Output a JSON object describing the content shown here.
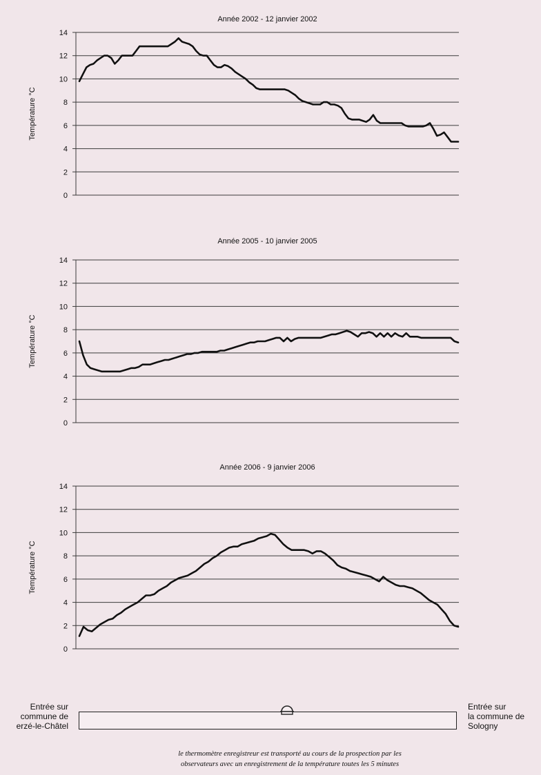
{
  "chart_data": [
    {
      "type": "line",
      "title": "Année 2002 - 12 janvier 2002",
      "ylabel": "Température °C",
      "xlabel": "",
      "ylim": [
        0,
        14
      ],
      "yticks": [
        0,
        2,
        4,
        6,
        8,
        10,
        12,
        14
      ],
      "grid": true,
      "color": "#111111",
      "y": [
        9.8,
        10.4,
        11.0,
        11.2,
        11.3,
        11.6,
        11.8,
        12.0,
        12.0,
        11.8,
        11.3,
        11.6,
        12.0,
        12.0,
        12.0,
        12.0,
        12.4,
        12.8,
        12.8,
        12.8,
        12.8,
        12.8,
        12.8,
        12.8,
        12.8,
        12.8,
        13.0,
        13.2,
        13.5,
        13.2,
        13.1,
        13.0,
        12.8,
        12.4,
        12.1,
        12.0,
        12.0,
        11.6,
        11.2,
        11.0,
        11.0,
        11.2,
        11.1,
        10.9,
        10.6,
        10.4,
        10.2,
        10.0,
        9.7,
        9.5,
        9.2,
        9.1,
        9.1,
        9.1,
        9.1,
        9.1,
        9.1,
        9.1,
        9.1,
        9.0,
        8.8,
        8.6,
        8.3,
        8.1,
        8.0,
        7.9,
        7.8,
        7.8,
        7.8,
        8.0,
        8.0,
        7.8,
        7.8,
        7.7,
        7.5,
        7.0,
        6.6,
        6.5,
        6.5,
        6.5,
        6.4,
        6.3,
        6.5,
        6.9,
        6.4,
        6.2,
        6.2,
        6.2,
        6.2,
        6.2,
        6.2,
        6.2,
        6.0,
        5.9,
        5.9,
        5.9,
        5.9,
        5.9,
        6.0,
        6.2,
        5.7,
        5.1,
        5.2,
        5.4,
        5.0,
        4.6,
        4.6,
        4.6
      ]
    },
    {
      "type": "line",
      "title": "Année 2005 - 10 janvier 2005",
      "ylabel": "Température °C",
      "xlabel": "",
      "ylim": [
        0,
        14
      ],
      "yticks": [
        0,
        2,
        4,
        6,
        8,
        10,
        12,
        14
      ],
      "grid": true,
      "color": "#111111",
      "y": [
        7.0,
        5.8,
        5.0,
        4.7,
        4.6,
        4.5,
        4.4,
        4.4,
        4.4,
        4.4,
        4.4,
        4.4,
        4.5,
        4.6,
        4.7,
        4.7,
        4.8,
        5.0,
        5.0,
        5.0,
        5.1,
        5.2,
        5.3,
        5.4,
        5.4,
        5.5,
        5.6,
        5.7,
        5.8,
        5.9,
        5.9,
        6.0,
        6.0,
        6.1,
        6.1,
        6.1,
        6.1,
        6.1,
        6.2,
        6.2,
        6.3,
        6.4,
        6.5,
        6.6,
        6.7,
        6.8,
        6.9,
        6.9,
        7.0,
        7.0,
        7.0,
        7.1,
        7.2,
        7.3,
        7.3,
        7.0,
        7.3,
        7.0,
        7.2,
        7.3,
        7.3,
        7.3,
        7.3,
        7.3,
        7.3,
        7.3,
        7.4,
        7.5,
        7.6,
        7.6,
        7.7,
        7.8,
        7.9,
        7.8,
        7.6,
        7.4,
        7.7,
        7.7,
        7.8,
        7.7,
        7.4,
        7.7,
        7.4,
        7.7,
        7.4,
        7.7,
        7.5,
        7.4,
        7.7,
        7.4,
        7.4,
        7.4,
        7.3,
        7.3,
        7.3,
        7.3,
        7.3,
        7.3,
        7.3,
        7.3,
        7.3,
        7.0,
        6.9
      ]
    },
    {
      "type": "line",
      "title": "Année 2006 - 9 janvier 2006",
      "ylabel": "Température °C",
      "xlabel": "",
      "ylim": [
        0,
        14
      ],
      "yticks": [
        0,
        2,
        4,
        6,
        8,
        10,
        12,
        14
      ],
      "grid": true,
      "color": "#111111",
      "y": [
        1.1,
        1.9,
        1.6,
        1.5,
        1.8,
        2.1,
        2.3,
        2.5,
        2.6,
        2.9,
        3.1,
        3.4,
        3.6,
        3.8,
        4.0,
        4.3,
        4.6,
        4.6,
        4.7,
        5.0,
        5.2,
        5.4,
        5.7,
        5.9,
        6.1,
        6.2,
        6.3,
        6.5,
        6.7,
        7.0,
        7.3,
        7.5,
        7.8,
        8.0,
        8.3,
        8.5,
        8.7,
        8.8,
        8.8,
        9.0,
        9.1,
        9.2,
        9.3,
        9.5,
        9.6,
        9.7,
        9.9,
        9.8,
        9.4,
        9.0,
        8.7,
        8.5,
        8.5,
        8.5,
        8.5,
        8.4,
        8.2,
        8.4,
        8.4,
        8.2,
        7.9,
        7.6,
        7.2,
        7.0,
        6.9,
        6.7,
        6.6,
        6.5,
        6.4,
        6.3,
        6.2,
        6.0,
        5.8,
        6.2,
        5.9,
        5.7,
        5.5,
        5.4,
        5.4,
        5.3,
        5.2,
        5.0,
        4.8,
        4.5,
        4.2,
        4.0,
        3.8,
        3.4,
        3.0,
        2.4,
        2.0,
        1.9
      ]
    }
  ],
  "route": {
    "left_label": [
      "Entrée sur",
      "commune de",
      "erzé-le-Châtel"
    ],
    "right_label": [
      "Entrée sur",
      "la commune de",
      "Sologny"
    ],
    "thermometer_icon": "thermometer-icon"
  },
  "caption": [
    "le thermomètre enregistreur est transporté au cours de la prospection par les",
    "observateurs avec un enregistrement de la température toutes les 5 minutes"
  ]
}
